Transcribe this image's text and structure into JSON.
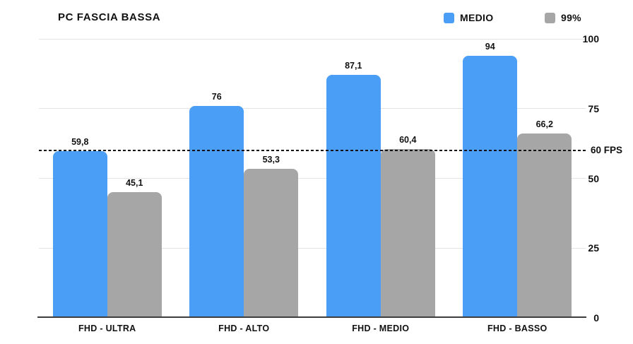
{
  "title": "PC FASCIA BASSA",
  "legend": [
    {
      "label": "MEDIO",
      "color": "#4A9EF6"
    },
    {
      "label": "99%",
      "color": "#A6A6A6"
    }
  ],
  "chart_data": {
    "type": "bar",
    "title": "PC FASCIA BASSA",
    "categories": [
      "FHD - ULTRA",
      "FHD - ALTO",
      "FHD - MEDIO",
      "FHD - BASSO"
    ],
    "series": [
      {
        "name": "MEDIO",
        "color": "#4A9EF6",
        "values": [
          59.8,
          76,
          87.1,
          94
        ],
        "display_labels": [
          "59,8",
          "76",
          "87,1",
          "94"
        ]
      },
      {
        "name": "99%",
        "color": "#A6A6A6",
        "values": [
          45.1,
          53.3,
          60.4,
          66.2
        ],
        "display_labels": [
          "45,1",
          "53,3",
          "60,4",
          "66,2"
        ]
      }
    ],
    "ylim": [
      0,
      100
    ],
    "yticks": [
      0,
      25,
      50,
      75,
      100
    ],
    "grid": true,
    "legend_position": "top-right",
    "threshold": {
      "value": 60,
      "label": "60 FPS"
    }
  },
  "colors": {
    "background": "#FFFFFF",
    "bar_medio": "#4A9EF6",
    "bar_99": "#A6A6A6",
    "gridline": "#E3E3E3",
    "axis": "#3D3D3D",
    "text": "#111111",
    "threshold": "#111111"
  }
}
